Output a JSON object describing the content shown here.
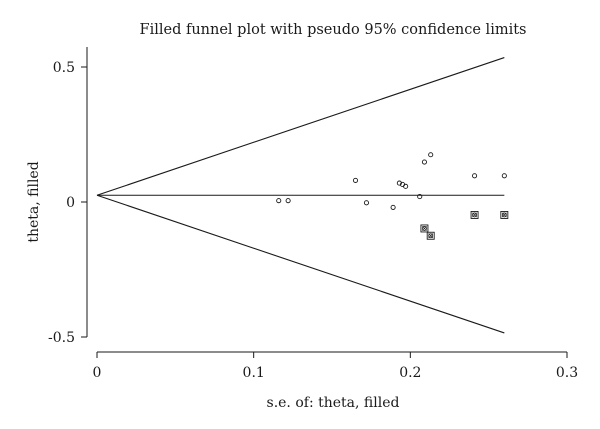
{
  "chart_data": {
    "type": "scatter",
    "title": "Filled funnel plot with pseudo 95% confidence limits",
    "xlabel": "s.e. of: theta, filled",
    "ylabel": "theta, filled",
    "xlim": [
      0,
      0.3
    ],
    "ylim": [
      -0.5,
      0.5
    ],
    "x_ticks": [
      {
        "value": 0,
        "label": "0"
      },
      {
        "value": 0.1,
        "label": "0.1"
      },
      {
        "value": 0.2,
        "label": "0.2"
      },
      {
        "value": 0.3,
        "label": "0.3"
      }
    ],
    "y_ticks": [
      {
        "value": 0.5,
        "label": "0.5"
      },
      {
        "value": 0,
        "label": "0"
      },
      {
        "value": -0.5,
        "label": "-0.5"
      }
    ],
    "pooled_estimate": 0.025,
    "confidence_limits": {
      "se_max": 0.26,
      "upper": [
        [
          0,
          0.025
        ],
        [
          0.26,
          0.535
        ]
      ],
      "lower": [
        [
          0,
          0.025
        ],
        [
          0.26,
          -0.485
        ]
      ]
    },
    "series": [
      {
        "marker": "circle",
        "points": [
          [
            0.116,
            0.005
          ],
          [
            0.122,
            0.005
          ],
          [
            0.165,
            0.08
          ],
          [
            0.172,
            -0.003
          ],
          [
            0.189,
            -0.02
          ],
          [
            0.193,
            0.07
          ],
          [
            0.195,
            0.065
          ],
          [
            0.197,
            0.058
          ],
          [
            0.206,
            0.02
          ],
          [
            0.209,
            0.148
          ],
          [
            0.213,
            0.175
          ],
          [
            0.241,
            0.097
          ],
          [
            0.26,
            0.097
          ]
        ]
      },
      {
        "marker": "square-filled",
        "points": [
          [
            0.209,
            -0.098
          ],
          [
            0.213,
            -0.125
          ],
          [
            0.241,
            -0.048
          ],
          [
            0.26,
            -0.048
          ]
        ]
      }
    ]
  }
}
